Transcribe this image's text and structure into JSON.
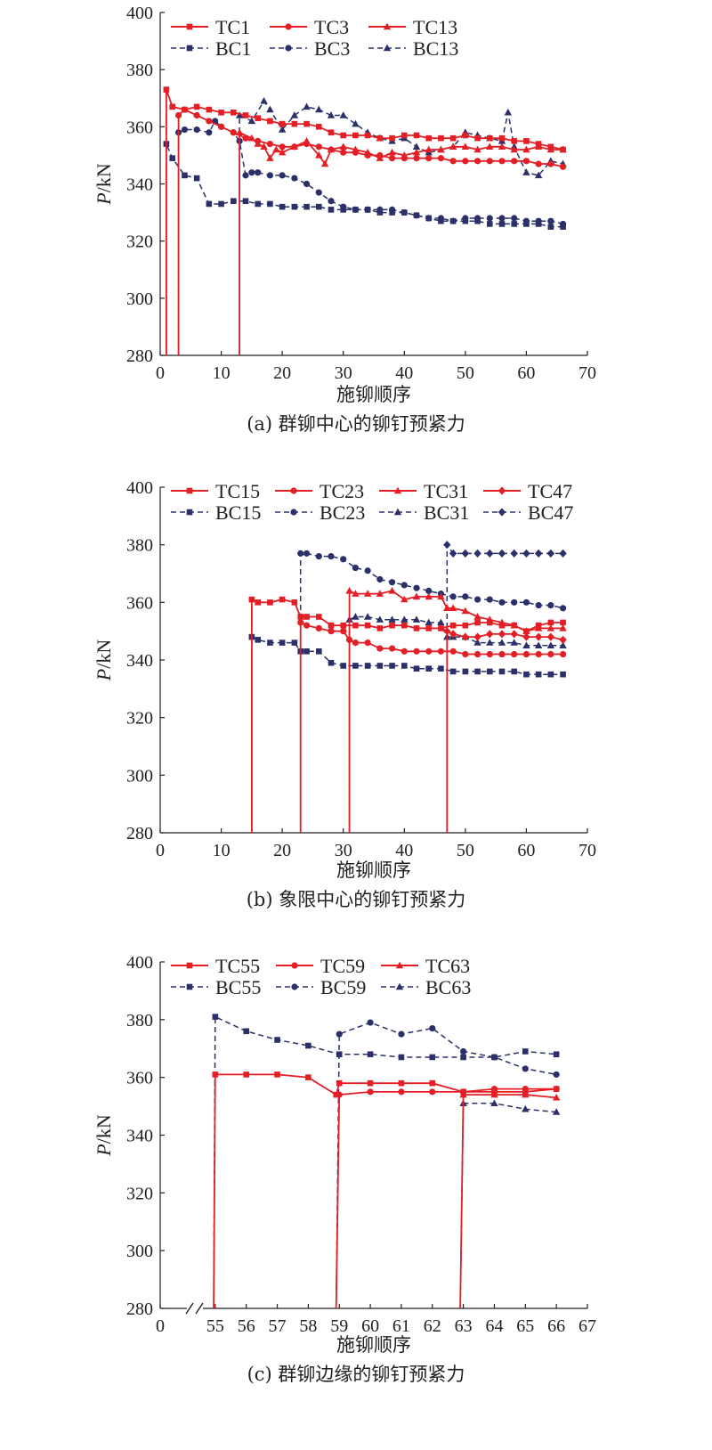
{
  "colors": {
    "tc": "#e31e24",
    "bc": "#2b3068",
    "axis": "#231f20"
  },
  "chart_data": [
    {
      "type": "line",
      "caption": "(a) 群铆中心的铆钉预紧力",
      "xlabel": "施铆顺序",
      "ylabel_italic": "P",
      "ylabel_rest": "/kN",
      "xlim": [
        0,
        70
      ],
      "ylim": [
        280,
        400
      ],
      "xticks": [
        "0",
        "10",
        "20",
        "30",
        "40",
        "50",
        "60",
        "70"
      ],
      "yticks": [
        "280",
        "300",
        "320",
        "340",
        "360",
        "380",
        "400"
      ],
      "series": [
        {
          "name": "TC1",
          "kind": "TC",
          "marker": "square",
          "x": [
            1,
            1,
            2,
            4,
            6,
            8,
            10,
            12,
            14,
            16,
            18,
            20,
            22,
            24,
            26,
            28,
            30,
            32,
            34,
            36,
            38,
            40,
            42,
            44,
            46,
            48,
            50,
            52,
            54,
            56,
            58,
            60,
            62,
            64,
            66
          ],
          "y": [
            280,
            373,
            367,
            366,
            367,
            366,
            365,
            365,
            364,
            363,
            362,
            361,
            361,
            361,
            360,
            358,
            357,
            357,
            357,
            356,
            356,
            357,
            357,
            356,
            356,
            356,
            357,
            356,
            356,
            356,
            355,
            355,
            354,
            353,
            352
          ]
        },
        {
          "name": "TC3",
          "kind": "TC",
          "marker": "circle",
          "x": [
            3,
            3,
            4,
            6,
            8,
            10,
            12,
            14,
            16,
            18,
            20,
            22,
            24,
            26,
            28,
            30,
            32,
            34,
            36,
            38,
            40,
            42,
            44,
            46,
            48,
            50,
            52,
            54,
            56,
            58,
            60,
            62,
            64,
            66
          ],
          "y": [
            280,
            364,
            366,
            364,
            362,
            360,
            358,
            356,
            355,
            354,
            353,
            353,
            354,
            353,
            352,
            351,
            351,
            350,
            350,
            349,
            349,
            349,
            349,
            349,
            348,
            348,
            348,
            348,
            348,
            348,
            348,
            347,
            347,
            346
          ]
        },
        {
          "name": "TC13",
          "kind": "TC",
          "marker": "triangle",
          "x": [
            13,
            13,
            15,
            16,
            17,
            18,
            19,
            20,
            22,
            24,
            26,
            27,
            28,
            30,
            32,
            34,
            36,
            38,
            40,
            42,
            44,
            46,
            48,
            50,
            52,
            54,
            56,
            58,
            60,
            62,
            64,
            66
          ],
          "y": [
            280,
            358,
            356,
            354,
            353,
            349,
            352,
            351,
            353,
            355,
            350,
            347,
            352,
            353,
            352,
            351,
            349,
            351,
            350,
            351,
            352,
            352,
            353,
            353,
            352,
            353,
            353,
            352,
            352,
            353,
            352,
            352
          ]
        },
        {
          "name": "BC1",
          "kind": "BC",
          "marker": "square",
          "x": [
            1,
            1,
            2,
            4,
            6,
            8,
            10,
            12,
            14,
            16,
            18,
            20,
            22,
            24,
            26,
            28,
            30,
            32,
            34,
            36,
            38,
            40,
            42,
            44,
            46,
            48,
            50,
            52,
            54,
            56,
            58,
            60,
            62,
            64,
            66
          ],
          "y": [
            280,
            354,
            349,
            343,
            342,
            333,
            333,
            334,
            334,
            333,
            333,
            332,
            332,
            332,
            332,
            331,
            331,
            331,
            331,
            330,
            330,
            330,
            329,
            328,
            327,
            327,
            327,
            327,
            326,
            326,
            326,
            326,
            326,
            325,
            325
          ]
        },
        {
          "name": "BC3",
          "kind": "BC",
          "marker": "circle",
          "x": [
            3,
            3,
            4,
            6,
            8,
            9,
            10,
            12,
            13,
            14,
            15,
            16,
            18,
            20,
            22,
            24,
            26,
            28,
            30,
            32,
            34,
            36,
            38,
            40,
            42,
            44,
            46,
            48,
            50,
            52,
            54,
            56,
            58,
            60,
            62,
            64,
            66
          ],
          "y": [
            280,
            358,
            359,
            359,
            358,
            362,
            360,
            358,
            355,
            343,
            344,
            344,
            343,
            343,
            342,
            340,
            337,
            334,
            332,
            331,
            331,
            331,
            331,
            330,
            329,
            328,
            328,
            327,
            328,
            328,
            328,
            328,
            328,
            327,
            327,
            327,
            326
          ]
        },
        {
          "name": "BC13",
          "kind": "BC",
          "marker": "triangle",
          "x": [
            13,
            13,
            15,
            17,
            18,
            20,
            22,
            24,
            26,
            28,
            30,
            32,
            34,
            36,
            38,
            40,
            42,
            44,
            46,
            48,
            50,
            52,
            54,
            56,
            57,
            58,
            60,
            62,
            64,
            66
          ],
          "y": [
            280,
            364,
            362,
            369,
            366,
            359,
            364,
            367,
            366,
            364,
            364,
            361,
            358,
            356,
            355,
            356,
            353,
            351,
            352,
            353,
            358,
            357,
            356,
            355,
            365,
            353,
            344,
            343,
            348,
            347
          ]
        }
      ]
    },
    {
      "type": "line",
      "caption": "(b) 象限中心的铆钉预紧力",
      "xlabel": "施铆顺序",
      "ylabel_italic": "P",
      "ylabel_rest": "/kN",
      "xlim": [
        0,
        70
      ],
      "ylim": [
        280,
        400
      ],
      "xticks": [
        "0",
        "10",
        "20",
        "30",
        "40",
        "50",
        "60",
        "70"
      ],
      "yticks": [
        "280",
        "300",
        "320",
        "340",
        "360",
        "380",
        "400"
      ],
      "series": [
        {
          "name": "TC15",
          "kind": "TC",
          "marker": "square",
          "x": [
            15,
            15,
            16,
            18,
            20,
            22,
            23,
            24,
            26,
            28,
            30,
            32,
            34,
            36,
            38,
            40,
            42,
            44,
            46,
            48,
            50,
            52,
            54,
            56,
            58,
            60,
            62,
            64,
            66
          ],
          "y": [
            280,
            361,
            360,
            360,
            361,
            360,
            355,
            355,
            355,
            352,
            352,
            352,
            352,
            351,
            352,
            352,
            351,
            351,
            351,
            352,
            352,
            353,
            353,
            352,
            352,
            350,
            352,
            353,
            353
          ]
        },
        {
          "name": "TC23",
          "kind": "TC",
          "marker": "circle",
          "x": [
            23,
            23,
            24,
            26,
            28,
            30,
            31,
            32,
            34,
            36,
            38,
            40,
            42,
            44,
            46,
            48,
            50,
            52,
            54,
            56,
            58,
            60,
            62,
            64,
            66
          ],
          "y": [
            280,
            353,
            352,
            351,
            350,
            350,
            347,
            346,
            346,
            344,
            344,
            343,
            343,
            343,
            343,
            343,
            342,
            342,
            342,
            342,
            342,
            342,
            342,
            342,
            342
          ]
        },
        {
          "name": "TC31",
          "kind": "TC",
          "marker": "triangle",
          "x": [
            31,
            31,
            32,
            34,
            36,
            38,
            40,
            42,
            44,
            46,
            47,
            48,
            50,
            52,
            54,
            56,
            58,
            60,
            62,
            64,
            66
          ],
          "y": [
            280,
            364,
            363,
            363,
            363,
            364,
            361,
            362,
            362,
            362,
            358,
            358,
            357,
            355,
            354,
            353,
            352,
            350,
            351,
            351,
            351
          ]
        },
        {
          "name": "TC47",
          "kind": "TC",
          "marker": "diamond",
          "x": [
            47,
            47,
            48,
            50,
            52,
            54,
            56,
            58,
            60,
            62,
            64,
            66
          ],
          "y": [
            280,
            350,
            349,
            348,
            348,
            349,
            349,
            349,
            348,
            348,
            348,
            347
          ]
        },
        {
          "name": "BC15",
          "kind": "BC",
          "marker": "square",
          "x": [
            15,
            15,
            16,
            18,
            20,
            22,
            23,
            24,
            26,
            28,
            30,
            32,
            34,
            36,
            38,
            40,
            42,
            44,
            46,
            48,
            50,
            52,
            54,
            56,
            58,
            60,
            62,
            64,
            66
          ],
          "y": [
            280,
            348,
            347,
            346,
            346,
            346,
            343,
            343,
            343,
            339,
            338,
            338,
            338,
            338,
            338,
            338,
            337,
            337,
            337,
            336,
            336,
            336,
            336,
            336,
            336,
            335,
            335,
            335,
            335
          ]
        },
        {
          "name": "BC23",
          "kind": "BC",
          "marker": "circle",
          "x": [
            23,
            23,
            24,
            26,
            28,
            30,
            32,
            34,
            36,
            38,
            40,
            42,
            44,
            46,
            48,
            50,
            52,
            54,
            56,
            58,
            60,
            62,
            64,
            66
          ],
          "y": [
            280,
            377,
            377,
            376,
            376,
            375,
            372,
            371,
            368,
            367,
            366,
            365,
            364,
            363,
            362,
            362,
            361,
            361,
            360,
            360,
            360,
            359,
            359,
            358
          ]
        },
        {
          "name": "BC31",
          "kind": "BC",
          "marker": "triangle",
          "x": [
            31,
            31,
            32,
            34,
            36,
            38,
            40,
            42,
            44,
            46,
            47,
            48,
            50,
            52,
            54,
            56,
            58,
            60,
            62,
            64,
            66
          ],
          "y": [
            280,
            354,
            355,
            355,
            354,
            354,
            354,
            354,
            353,
            353,
            348,
            348,
            348,
            346,
            346,
            346,
            346,
            345,
            345,
            345,
            345
          ]
        },
        {
          "name": "BC47",
          "kind": "BC",
          "marker": "diamond",
          "x": [
            47,
            47,
            48,
            50,
            52,
            54,
            56,
            58,
            60,
            62,
            64,
            66
          ],
          "y": [
            280,
            380,
            377,
            377,
            377,
            377,
            377,
            377,
            377,
            377,
            377,
            377
          ]
        }
      ]
    },
    {
      "type": "line",
      "caption": "(c) 群铆边缘的铆钉预紧力",
      "xlabel": "施铆顺序",
      "ylabel_italic": "P",
      "ylabel_rest": "/kN",
      "xlim": [
        54,
        67
      ],
      "ylim": [
        280,
        400
      ],
      "xticks": [
        "0",
        "55",
        "56",
        "57",
        "58",
        "59",
        "60",
        "61",
        "62",
        "63",
        "64",
        "65",
        "66",
        "67"
      ],
      "yticks": [
        "280",
        "300",
        "320",
        "340",
        "360",
        "380",
        "400"
      ],
      "axis_break": true,
      "series": [
        {
          "name": "TC55",
          "kind": "TC",
          "marker": "square",
          "x": [
            54.95,
            55,
            56,
            57,
            58,
            58.9,
            59,
            60,
            61,
            62,
            63,
            64,
            65,
            66
          ],
          "y": [
            280,
            361,
            361,
            361,
            360,
            354,
            358,
            358,
            358,
            358,
            355,
            355,
            355,
            356
          ]
        },
        {
          "name": "TC59",
          "kind": "TC",
          "marker": "circle",
          "x": [
            58.9,
            59,
            60,
            61,
            62,
            63,
            64,
            65,
            66
          ],
          "y": [
            280,
            354,
            355,
            355,
            355,
            355,
            356,
            356,
            356
          ]
        },
        {
          "name": "TC63",
          "kind": "TC",
          "marker": "triangle",
          "x": [
            62.9,
            63,
            64,
            65,
            66
          ],
          "y": [
            280,
            354,
            354,
            354,
            353
          ]
        },
        {
          "name": "BC55",
          "kind": "BC",
          "marker": "square",
          "x": [
            54.95,
            55,
            56,
            57,
            58,
            59,
            60,
            61,
            62,
            63,
            64,
            65,
            66
          ],
          "y": [
            280,
            381,
            376,
            373,
            371,
            368,
            368,
            367,
            367,
            367,
            367,
            369,
            368
          ]
        },
        {
          "name": "BC59",
          "kind": "BC",
          "marker": "circle",
          "x": [
            58.9,
            59,
            60,
            61,
            62,
            63,
            64,
            65,
            66
          ],
          "y": [
            280,
            375,
            379,
            375,
            377,
            369,
            367,
            363,
            361
          ]
        },
        {
          "name": "BC63",
          "kind": "BC",
          "marker": "triangle",
          "x": [
            62.9,
            63,
            64,
            65,
            66
          ],
          "y": [
            280,
            351,
            351,
            349,
            348
          ]
        }
      ]
    }
  ]
}
